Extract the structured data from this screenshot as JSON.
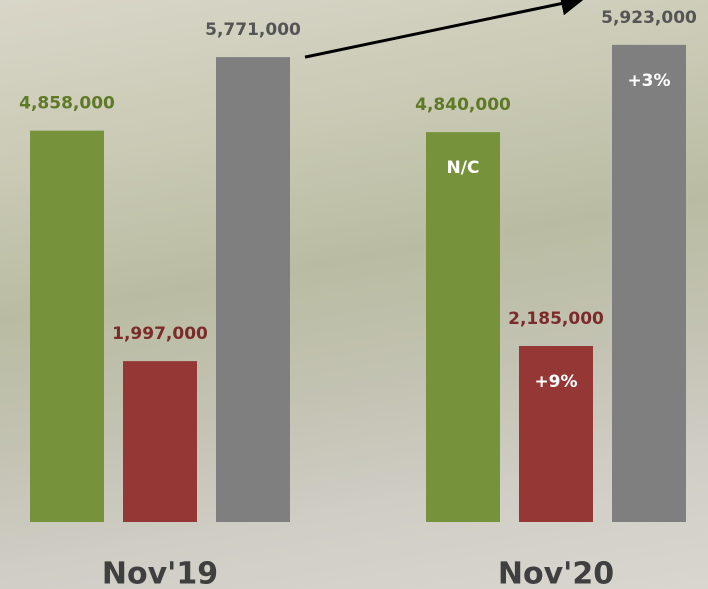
{
  "chart_data": {
    "type": "bar",
    "categories": [
      "Nov'19",
      "Nov'20"
    ],
    "series": [
      {
        "color": "#76933c",
        "label_color": "#5e7a26",
        "values": [
          4858000,
          4840000
        ],
        "value_labels": [
          "4,858,000",
          "4,840,000"
        ],
        "annotations": [
          null,
          "N/C"
        ]
      },
      {
        "color": "#953735",
        "label_color": "#7a2b2a",
        "values": [
          1997000,
          2185000
        ],
        "value_labels": [
          "1,997,000",
          "2,185,000"
        ],
        "annotations": [
          null,
          "+9%"
        ]
      },
      {
        "color": "#7f7f7f",
        "label_color": "#555555",
        "values": [
          5771000,
          5923000
        ],
        "value_labels": [
          "5,771,000",
          "5,923,000"
        ],
        "annotations": [
          null,
          "+3%"
        ]
      }
    ],
    "ylim": [
      0,
      6480000
    ]
  }
}
